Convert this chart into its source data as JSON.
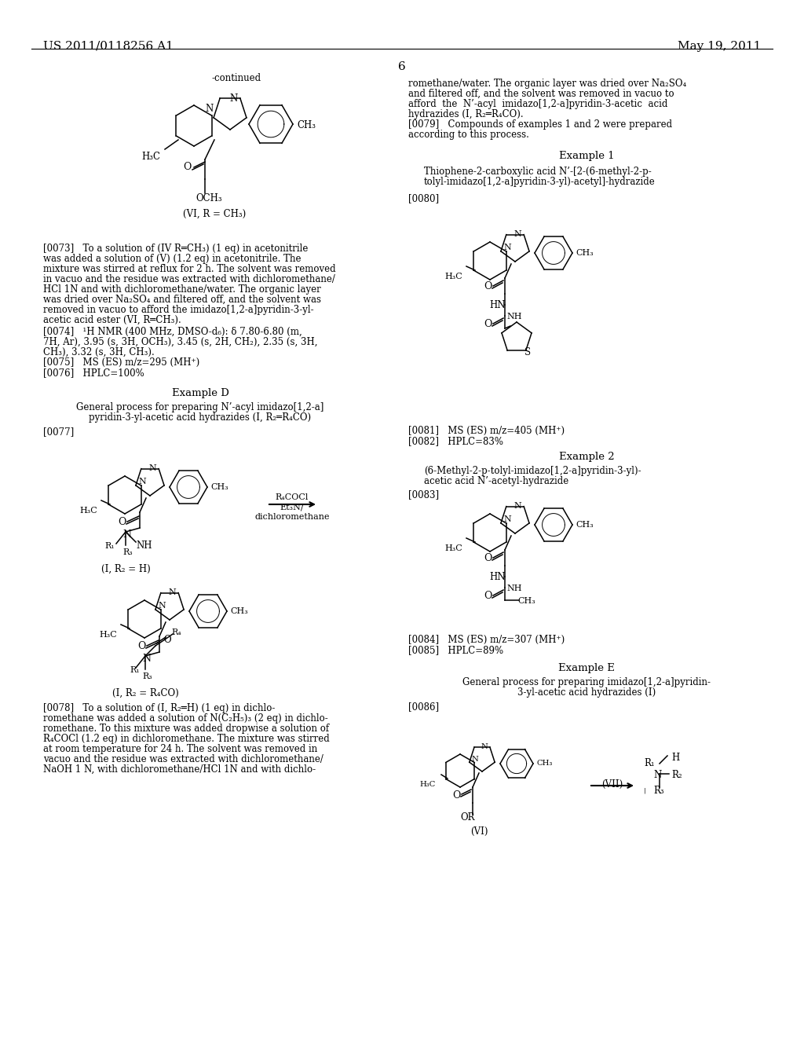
{
  "bg_color": "#ffffff",
  "header_left": "US 2011/0118256 A1",
  "header_right": "May 19, 2011",
  "page_number": "6"
}
